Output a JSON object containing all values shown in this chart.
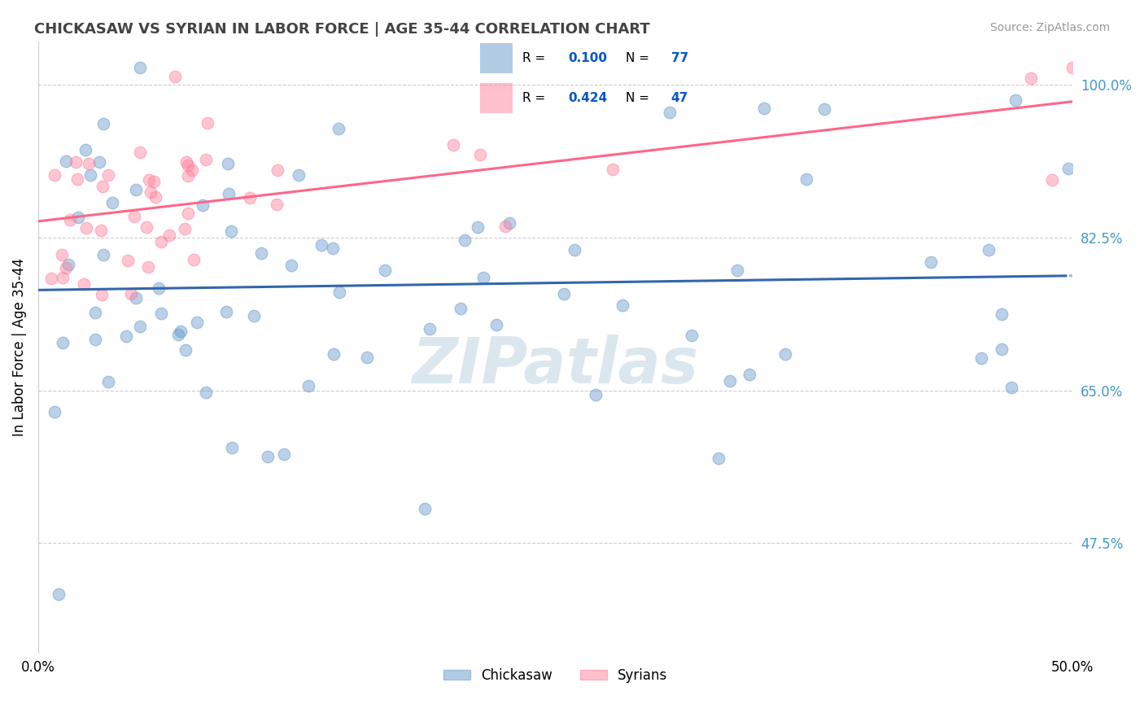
{
  "title": "CHICKASAW VS SYRIAN IN LABOR FORCE | AGE 35-44 CORRELATION CHART",
  "source": "Source: ZipAtlas.com",
  "ylabel": "In Labor Force | Age 35-44",
  "xlim": [
    0.0,
    0.5
  ],
  "ylim": [
    0.35,
    1.05
  ],
  "yticks": [
    0.475,
    0.65,
    0.825,
    1.0
  ],
  "ytick_labels": [
    "47.5%",
    "65.0%",
    "82.5%",
    "100.0%"
  ],
  "xticks": [
    0.0,
    0.125,
    0.25,
    0.375,
    0.5
  ],
  "xtick_labels": [
    "0.0%",
    "",
    "",
    "",
    "50.0%"
  ],
  "chickasaw_color": "#6699CC",
  "syrian_color": "#FF8099",
  "chickasaw_R": 0.1,
  "chickasaw_N": 77,
  "syrian_R": 0.424,
  "syrian_N": 47,
  "legend_color": "#0055CC",
  "watermark": "ZIPatlas",
  "watermark_color": "#CCDDE8"
}
